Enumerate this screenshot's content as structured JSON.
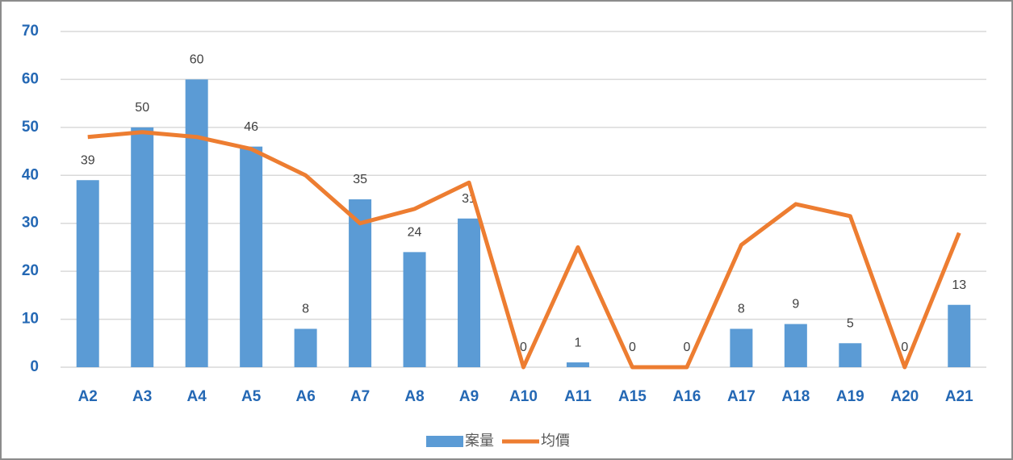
{
  "chart_data": {
    "type": "combo",
    "categories": [
      "A2",
      "A3",
      "A4",
      "A5",
      "A6",
      "A7",
      "A8",
      "A9",
      "A10",
      "A11",
      "A15",
      "A16",
      "A17",
      "A18",
      "A19",
      "A20",
      "A21"
    ],
    "series": [
      {
        "name": "案量",
        "type": "bar",
        "color": "#5b9bd5",
        "values": [
          39,
          50,
          60,
          46,
          8,
          35,
          24,
          31,
          0,
          1,
          0,
          0,
          8,
          9,
          5,
          0,
          13
        ],
        "data_labels": true
      },
      {
        "name": "均價",
        "type": "line",
        "color": "#ed7d31",
        "values": [
          48,
          49,
          48,
          45.5,
          40,
          30,
          33,
          38.5,
          0,
          25,
          0,
          0,
          25.5,
          34,
          31.5,
          0,
          28
        ]
      }
    ],
    "ylim": [
      0,
      70
    ],
    "yticks": [
      0,
      10,
      20,
      30,
      40,
      50,
      60,
      70
    ],
    "grid": true,
    "legend": "bottom"
  }
}
